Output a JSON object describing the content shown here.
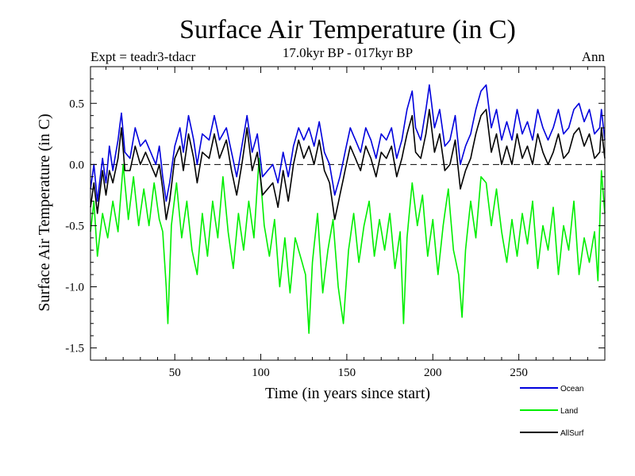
{
  "chart_data": {
    "type": "line",
    "title": "Surface Air Temperature (in C)",
    "subtitle": "17.0kyr BP - 017kyr BP",
    "left_label": "Expt = teadr3-tdacr",
    "right_label": "Ann",
    "xlabel": "Time (in years since start)",
    "ylabel": "Surface Air Temperature (in C)",
    "xlim": [
      1,
      300
    ],
    "ylim": [
      -1.6,
      0.8
    ],
    "x_ticks": [
      50,
      100,
      150,
      200,
      250
    ],
    "x_tick_labels": [
      "50",
      "100",
      "150",
      "200",
      "250"
    ],
    "y_ticks": [
      0.5,
      0.0,
      -0.5,
      -1.0,
      -1.5
    ],
    "y_tick_labels": [
      "0.5",
      "0.0",
      "-0.5",
      "-1.0",
      "-1.5"
    ],
    "zero_line": true,
    "legend_position": "bottom-right",
    "colors": {
      "ocean": "#0000dd",
      "land": "#00ee00",
      "allsurf": "#000000"
    },
    "series": [
      {
        "name": "Ocean",
        "key": "ocean",
        "x_start": 1,
        "x_end": 300,
        "anchors": [
          [
            1,
            -0.2
          ],
          [
            3,
            0.0
          ],
          [
            5,
            -0.3
          ],
          [
            8,
            0.05
          ],
          [
            10,
            -0.15
          ],
          [
            12,
            0.15
          ],
          [
            14,
            -0.05
          ],
          [
            17,
            0.2
          ],
          [
            19,
            0.42
          ],
          [
            21,
            0.1
          ],
          [
            24,
            0.05
          ],
          [
            27,
            0.3
          ],
          [
            30,
            0.15
          ],
          [
            33,
            0.2
          ],
          [
            36,
            0.1
          ],
          [
            39,
            0.0
          ],
          [
            41,
            0.15
          ],
          [
            43,
            -0.1
          ],
          [
            45,
            -0.3
          ],
          [
            47,
            -0.15
          ],
          [
            50,
            0.15
          ],
          [
            53,
            0.3
          ],
          [
            55,
            0.1
          ],
          [
            58,
            0.4
          ],
          [
            61,
            0.2
          ],
          [
            63,
            0.0
          ],
          [
            66,
            0.25
          ],
          [
            70,
            0.2
          ],
          [
            73,
            0.4
          ],
          [
            76,
            0.2
          ],
          [
            80,
            0.3
          ],
          [
            83,
            0.1
          ],
          [
            86,
            -0.1
          ],
          [
            89,
            0.15
          ],
          [
            92,
            0.4
          ],
          [
            95,
            0.1
          ],
          [
            98,
            0.25
          ],
          [
            101,
            -0.1
          ],
          [
            104,
            -0.05
          ],
          [
            107,
            0.0
          ],
          [
            110,
            -0.15
          ],
          [
            113,
            0.1
          ],
          [
            116,
            -0.1
          ],
          [
            119,
            0.15
          ],
          [
            122,
            0.3
          ],
          [
            125,
            0.2
          ],
          [
            128,
            0.3
          ],
          [
            131,
            0.15
          ],
          [
            134,
            0.35
          ],
          [
            137,
            0.1
          ],
          [
            140,
            0.0
          ],
          [
            143,
            -0.25
          ],
          [
            146,
            -0.1
          ],
          [
            149,
            0.1
          ],
          [
            152,
            0.3
          ],
          [
            155,
            0.2
          ],
          [
            158,
            0.1
          ],
          [
            161,
            0.3
          ],
          [
            164,
            0.2
          ],
          [
            167,
            0.05
          ],
          [
            170,
            0.25
          ],
          [
            173,
            0.2
          ],
          [
            176,
            0.3
          ],
          [
            179,
            0.05
          ],
          [
            182,
            0.2
          ],
          [
            185,
            0.45
          ],
          [
            188,
            0.6
          ],
          [
            190,
            0.3
          ],
          [
            193,
            0.2
          ],
          [
            196,
            0.45
          ],
          [
            198,
            0.65
          ],
          [
            201,
            0.3
          ],
          [
            204,
            0.45
          ],
          [
            207,
            0.15
          ],
          [
            210,
            0.2
          ],
          [
            213,
            0.4
          ],
          [
            216,
            0.0
          ],
          [
            219,
            0.15
          ],
          [
            222,
            0.25
          ],
          [
            225,
            0.45
          ],
          [
            228,
            0.6
          ],
          [
            231,
            0.65
          ],
          [
            234,
            0.3
          ],
          [
            237,
            0.45
          ],
          [
            240,
            0.2
          ],
          [
            243,
            0.35
          ],
          [
            246,
            0.2
          ],
          [
            249,
            0.45
          ],
          [
            252,
            0.25
          ],
          [
            255,
            0.35
          ],
          [
            258,
            0.2
          ],
          [
            261,
            0.45
          ],
          [
            264,
            0.3
          ],
          [
            267,
            0.2
          ],
          [
            270,
            0.3
          ],
          [
            273,
            0.45
          ],
          [
            276,
            0.25
          ],
          [
            279,
            0.3
          ],
          [
            282,
            0.45
          ],
          [
            285,
            0.5
          ],
          [
            288,
            0.35
          ],
          [
            291,
            0.45
          ],
          [
            294,
            0.25
          ],
          [
            297,
            0.3
          ],
          [
            298,
            0.45
          ],
          [
            300,
            0.2
          ]
        ]
      },
      {
        "name": "Land",
        "key": "land",
        "x_start": 1,
        "x_end": 300,
        "anchors": [
          [
            1,
            -0.55
          ],
          [
            3,
            -0.3
          ],
          [
            5,
            -0.75
          ],
          [
            8,
            -0.4
          ],
          [
            11,
            -0.6
          ],
          [
            14,
            -0.3
          ],
          [
            17,
            -0.55
          ],
          [
            20,
            0.0
          ],
          [
            23,
            -0.45
          ],
          [
            26,
            -0.1
          ],
          [
            29,
            -0.5
          ],
          [
            32,
            -0.2
          ],
          [
            35,
            -0.5
          ],
          [
            38,
            -0.15
          ],
          [
            41,
            -0.45
          ],
          [
            43,
            -0.55
          ],
          [
            45,
            -1.0
          ],
          [
            46,
            -1.3
          ],
          [
            48,
            -0.5
          ],
          [
            51,
            -0.15
          ],
          [
            54,
            -0.6
          ],
          [
            57,
            -0.3
          ],
          [
            60,
            -0.7
          ],
          [
            63,
            -0.9
          ],
          [
            66,
            -0.4
          ],
          [
            69,
            -0.75
          ],
          [
            72,
            -0.3
          ],
          [
            75,
            -0.6
          ],
          [
            78,
            -0.1
          ],
          [
            81,
            -0.55
          ],
          [
            84,
            -0.85
          ],
          [
            87,
            -0.4
          ],
          [
            90,
            -0.7
          ],
          [
            93,
            -0.3
          ],
          [
            96,
            -0.6
          ],
          [
            99,
            0.05
          ],
          [
            102,
            -0.5
          ],
          [
            105,
            -0.75
          ],
          [
            108,
            -0.45
          ],
          [
            111,
            -1.0
          ],
          [
            114,
            -0.6
          ],
          [
            117,
            -1.05
          ],
          [
            120,
            -0.6
          ],
          [
            123,
            -0.75
          ],
          [
            126,
            -0.9
          ],
          [
            128,
            -1.38
          ],
          [
            130,
            -0.8
          ],
          [
            133,
            -0.4
          ],
          [
            136,
            -1.05
          ],
          [
            139,
            -0.7
          ],
          [
            142,
            -0.45
          ],
          [
            145,
            -1.0
          ],
          [
            148,
            -1.3
          ],
          [
            151,
            -0.7
          ],
          [
            154,
            -0.4
          ],
          [
            157,
            -0.8
          ],
          [
            160,
            -0.5
          ],
          [
            163,
            -0.3
          ],
          [
            166,
            -0.75
          ],
          [
            169,
            -0.45
          ],
          [
            172,
            -0.7
          ],
          [
            175,
            -0.4
          ],
          [
            178,
            -0.85
          ],
          [
            181,
            -0.55
          ],
          [
            183,
            -1.3
          ],
          [
            185,
            -0.6
          ],
          [
            188,
            -0.15
          ],
          [
            191,
            -0.5
          ],
          [
            194,
            -0.25
          ],
          [
            197,
            -0.75
          ],
          [
            200,
            -0.45
          ],
          [
            203,
            -0.9
          ],
          [
            206,
            -0.5
          ],
          [
            209,
            -0.2
          ],
          [
            212,
            -0.7
          ],
          [
            215,
            -0.9
          ],
          [
            217,
            -1.25
          ],
          [
            219,
            -0.7
          ],
          [
            222,
            -0.3
          ],
          [
            225,
            -0.6
          ],
          [
            228,
            -0.1
          ],
          [
            231,
            -0.15
          ],
          [
            234,
            -0.5
          ],
          [
            237,
            -0.2
          ],
          [
            240,
            -0.55
          ],
          [
            243,
            -0.8
          ],
          [
            246,
            -0.45
          ],
          [
            249,
            -0.75
          ],
          [
            252,
            -0.4
          ],
          [
            255,
            -0.65
          ],
          [
            258,
            -0.3
          ],
          [
            261,
            -0.85
          ],
          [
            264,
            -0.5
          ],
          [
            267,
            -0.7
          ],
          [
            270,
            -0.35
          ],
          [
            273,
            -0.9
          ],
          [
            276,
            -0.5
          ],
          [
            279,
            -0.7
          ],
          [
            282,
            -0.3
          ],
          [
            285,
            -0.9
          ],
          [
            288,
            -0.6
          ],
          [
            291,
            -0.8
          ],
          [
            294,
            -0.55
          ],
          [
            296,
            -0.95
          ],
          [
            298,
            -0.05
          ],
          [
            300,
            -0.4
          ]
        ]
      },
      {
        "name": "AllSurf",
        "key": "allsurf",
        "x_start": 1,
        "x_end": 300,
        "anchors": [
          [
            1,
            -0.35
          ],
          [
            3,
            -0.15
          ],
          [
            5,
            -0.4
          ],
          [
            8,
            -0.05
          ],
          [
            10,
            -0.25
          ],
          [
            12,
            -0.05
          ],
          [
            14,
            -0.15
          ],
          [
            17,
            0.05
          ],
          [
            19,
            0.3
          ],
          [
            21,
            -0.05
          ],
          [
            24,
            -0.05
          ],
          [
            27,
            0.15
          ],
          [
            30,
            0.0
          ],
          [
            33,
            0.1
          ],
          [
            36,
            0.0
          ],
          [
            39,
            -0.1
          ],
          [
            41,
            0.0
          ],
          [
            43,
            -0.2
          ],
          [
            45,
            -0.45
          ],
          [
            47,
            -0.3
          ],
          [
            50,
            0.05
          ],
          [
            53,
            0.15
          ],
          [
            55,
            -0.05
          ],
          [
            58,
            0.25
          ],
          [
            61,
            0.05
          ],
          [
            63,
            -0.15
          ],
          [
            66,
            0.1
          ],
          [
            70,
            0.05
          ],
          [
            73,
            0.25
          ],
          [
            76,
            0.05
          ],
          [
            80,
            0.2
          ],
          [
            83,
            -0.05
          ],
          [
            86,
            -0.25
          ],
          [
            89,
            0.0
          ],
          [
            92,
            0.3
          ],
          [
            95,
            -0.05
          ],
          [
            98,
            0.1
          ],
          [
            101,
            -0.25
          ],
          [
            104,
            -0.2
          ],
          [
            107,
            -0.15
          ],
          [
            110,
            -0.35
          ],
          [
            113,
            -0.05
          ],
          [
            116,
            -0.3
          ],
          [
            119,
            0.0
          ],
          [
            122,
            0.2
          ],
          [
            125,
            0.05
          ],
          [
            128,
            0.15
          ],
          [
            131,
            0.0
          ],
          [
            134,
            0.2
          ],
          [
            137,
            -0.05
          ],
          [
            140,
            -0.15
          ],
          [
            143,
            -0.45
          ],
          [
            146,
            -0.25
          ],
          [
            149,
            -0.05
          ],
          [
            152,
            0.15
          ],
          [
            155,
            0.05
          ],
          [
            158,
            -0.05
          ],
          [
            161,
            0.15
          ],
          [
            164,
            0.05
          ],
          [
            167,
            -0.1
          ],
          [
            170,
            0.1
          ],
          [
            173,
            0.05
          ],
          [
            176,
            0.15
          ],
          [
            179,
            -0.1
          ],
          [
            182,
            0.05
          ],
          [
            185,
            0.25
          ],
          [
            188,
            0.4
          ],
          [
            190,
            0.1
          ],
          [
            193,
            0.05
          ],
          [
            196,
            0.25
          ],
          [
            198,
            0.45
          ],
          [
            201,
            0.1
          ],
          [
            204,
            0.25
          ],
          [
            207,
            -0.05
          ],
          [
            210,
            0.0
          ],
          [
            213,
            0.2
          ],
          [
            216,
            -0.2
          ],
          [
            219,
            -0.05
          ],
          [
            222,
            0.05
          ],
          [
            225,
            0.25
          ],
          [
            228,
            0.4
          ],
          [
            231,
            0.45
          ],
          [
            234,
            0.1
          ],
          [
            237,
            0.25
          ],
          [
            240,
            0.0
          ],
          [
            243,
            0.15
          ],
          [
            246,
            0.0
          ],
          [
            249,
            0.25
          ],
          [
            252,
            0.05
          ],
          [
            255,
            0.15
          ],
          [
            258,
            0.0
          ],
          [
            261,
            0.25
          ],
          [
            264,
            0.1
          ],
          [
            267,
            0.0
          ],
          [
            270,
            0.1
          ],
          [
            273,
            0.25
          ],
          [
            276,
            0.05
          ],
          [
            279,
            0.1
          ],
          [
            282,
            0.25
          ],
          [
            285,
            0.3
          ],
          [
            288,
            0.15
          ],
          [
            291,
            0.25
          ],
          [
            294,
            0.05
          ],
          [
            297,
            0.1
          ],
          [
            298,
            0.3
          ],
          [
            300,
            0.05
          ]
        ]
      }
    ]
  }
}
